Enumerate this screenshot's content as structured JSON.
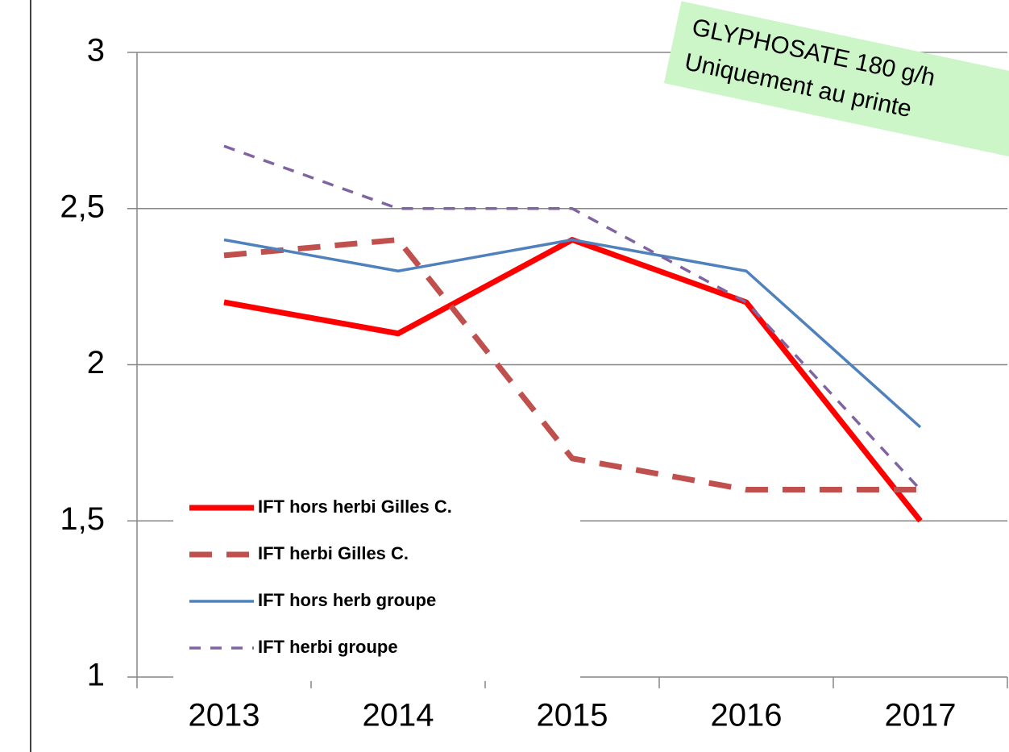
{
  "chart_data": {
    "type": "line",
    "categories": [
      "2013",
      "2014",
      "2015",
      "2016",
      "2017"
    ],
    "series": [
      {
        "name": "IFT hors herbi Gilles C.",
        "color": "#ff0000",
        "dash": "solid",
        "values": [
          2.2,
          2.1,
          2.4,
          2.2,
          1.5
        ]
      },
      {
        "name": "IFT herbi Gilles C.",
        "color": "#c0504d",
        "dash": "long",
        "values": [
          2.35,
          2.4,
          1.7,
          1.6,
          1.6
        ]
      },
      {
        "name": "IFT hors herb groupe",
        "color": "#4f81bd",
        "dash": "solid",
        "values": [
          2.4,
          2.3,
          2.4,
          2.3,
          1.8
        ]
      },
      {
        "name": "IFT herbi groupe",
        "color": "#8064a2",
        "dash": "short",
        "values": [
          2.7,
          2.5,
          2.5,
          2.2,
          1.6
        ]
      }
    ],
    "ylim": [
      1,
      3
    ],
    "yticks": [
      1,
      {
        "value": 1.5,
        "label": "1,5"
      },
      2,
      {
        "value": 2.5,
        "label": "2,5"
      },
      3
    ],
    "grid": true,
    "legend": "lower left",
    "annotation": [
      "GLYPHOSATE  180 g/h",
      "Uniquement au printe"
    ]
  }
}
